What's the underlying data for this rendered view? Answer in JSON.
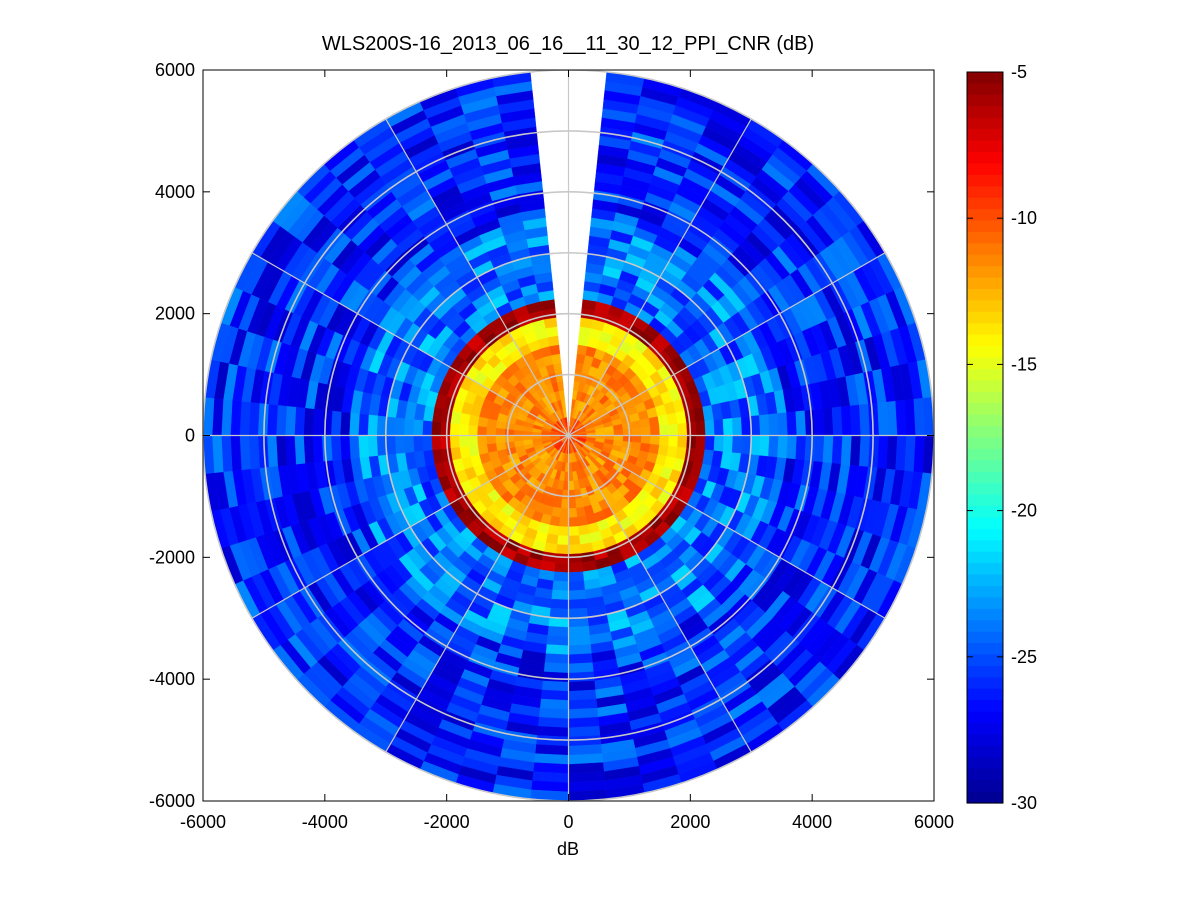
{
  "chart_data": {
    "type": "heatmap",
    "subtype": "polar-ppi",
    "title": "WLS200S-16_2013_06_16__11_30_12_PPI_CNR (dB)",
    "xlabel": "dB",
    "ylabel": "",
    "xlim": [
      -6000,
      6000
    ],
    "ylim": [
      -6000,
      6000
    ],
    "xticks": [
      -6000,
      -4000,
      -2000,
      0,
      2000,
      4000,
      6000
    ],
    "yticks": [
      -6000,
      -4000,
      -2000,
      0,
      2000,
      4000,
      6000
    ],
    "xtick_labels": [
      "-6000",
      "-4000",
      "-2000",
      "0",
      "2000",
      "4000",
      "6000"
    ],
    "ytick_labels": [
      "6000",
      "4000",
      "2000",
      "0",
      "-2000",
      "-4000",
      "-6000"
    ],
    "grid": "polar",
    "grid_rings_range": [
      1000,
      2000,
      3000,
      4000,
      5000,
      6000
    ],
    "grid_spokes_deg": [
      0,
      30,
      60,
      90,
      120,
      150,
      180,
      210,
      240,
      270,
      300,
      330
    ],
    "max_range": 6000,
    "blind_sector_azimuth_deg": [
      354,
      6
    ],
    "colormap": "jet",
    "colorbar": {
      "clim": [
        -30,
        -5
      ],
      "ticks": [
        -5,
        -10,
        -15,
        -20,
        -25,
        -30
      ],
      "tick_labels": [
        "-5",
        "-10",
        "-15",
        "-20",
        "-25",
        "-30"
      ],
      "stops": [
        "#00008f",
        "#0000ff",
        "#00ffff",
        "#ffff00",
        "#ff0000",
        "#800000"
      ]
    },
    "cnr_profile_by_range": [
      {
        "range": [
          0,
          300
        ],
        "cnr_db": -10
      },
      {
        "range": [
          300,
          1500
        ],
        "cnr_db": -11.5
      },
      {
        "range": [
          1500,
          2000
        ],
        "cnr_db": -14
      },
      {
        "range": [
          2000,
          2200
        ],
        "cnr_db": -6
      },
      {
        "range": [
          2200,
          3600
        ],
        "cnr_db": -24
      },
      {
        "range": [
          3600,
          6000
        ],
        "cnr_db": -26
      }
    ]
  }
}
